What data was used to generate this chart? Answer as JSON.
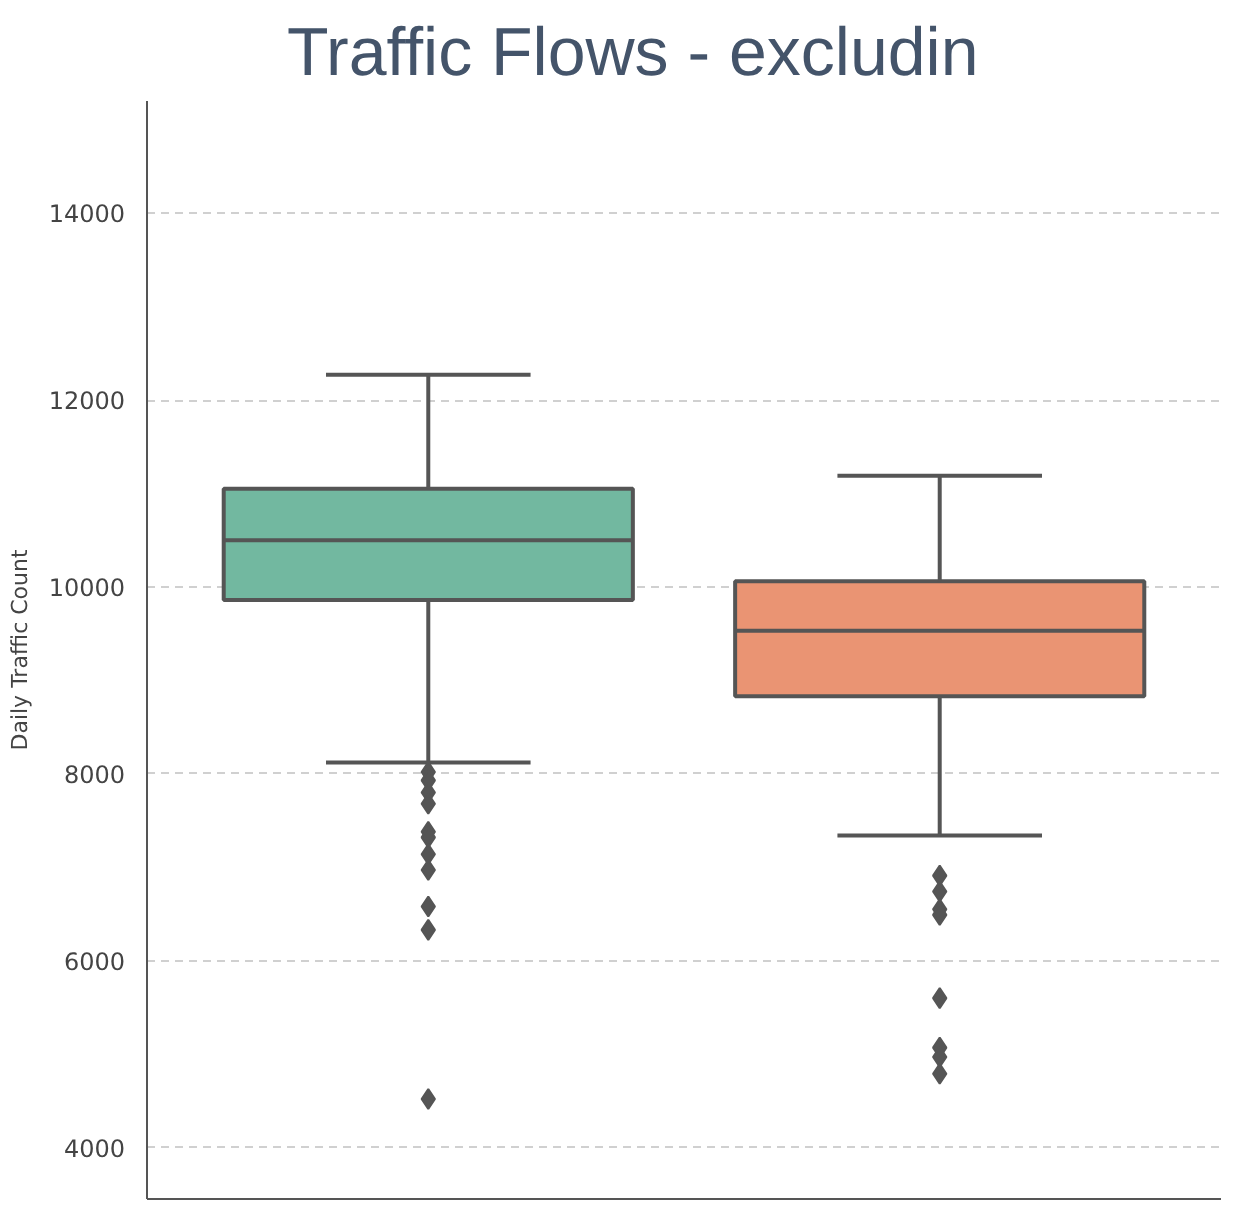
{
  "chart_data": {
    "type": "box",
    "title": "Traffic Flows - excludin",
    "ylabel": "Daily Traffic Count",
    "categories": [
      null,
      null
    ],
    "colors": [
      "#72b8a0",
      "#ea9473"
    ],
    "boxes": [
      {
        "low": 8120,
        "q1": 9860,
        "median": 10500,
        "q3": 11050,
        "high": 12270,
        "outliers": [
          8020,
          7930,
          7800,
          7680,
          7380,
          7320,
          7140,
          6970,
          6580,
          6330,
          4520
        ]
      },
      {
        "low": 7340,
        "q1": 8830,
        "median": 9530,
        "q3": 10060,
        "high": 11190,
        "outliers": [
          6910,
          6740,
          6550,
          6490,
          5600,
          5070,
          4970,
          4790
        ]
      }
    ],
    "ylim": [
      3450,
      15200
    ],
    "yticks": [
      4000,
      6000,
      8000,
      10000,
      12000,
      14000
    ],
    "grid": "y",
    "marker": "diamond"
  }
}
